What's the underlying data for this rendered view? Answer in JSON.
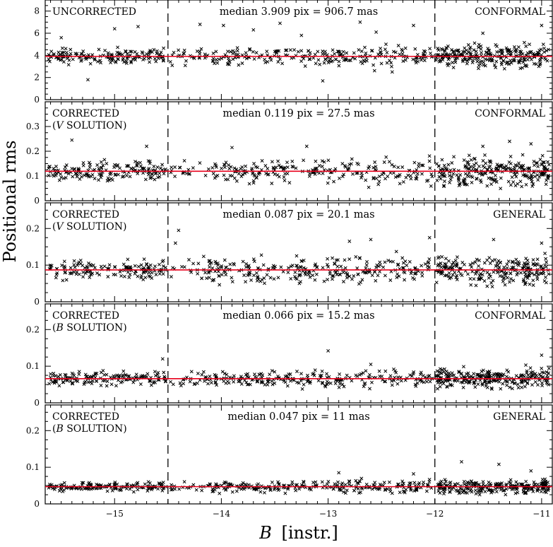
{
  "ylabel": "Positional rms",
  "xlabel_italic": "B",
  "xlabel_rest": "[instr.]",
  "x_ticks": [
    "-15",
    "-14",
    "-13",
    "-12",
    "-11"
  ],
  "colors": {
    "median_line": "#e8001c",
    "points": "#000000",
    "dashed": "#000000"
  },
  "chart_data": [
    {
      "type": "scatter",
      "xlim": [
        -15.65,
        -10.9
      ],
      "ylim": [
        0,
        9
      ],
      "y_ticks": [
        "0",
        "2",
        "4",
        "6",
        "8"
      ],
      "y_tick_values": [
        0,
        2,
        4,
        6,
        8
      ],
      "vlines": [
        -14.5,
        -12.0
      ],
      "median": 3.909,
      "left_label": [
        "UNCORRECTED"
      ],
      "median_text": "median 3.909 pix = 906.7 mas",
      "right_label": "CONFORMAL",
      "spread": 0.55,
      "outliers": [
        [
          -15.5,
          5.6
        ],
        [
          -15.0,
          6.4
        ],
        [
          -14.78,
          6.6
        ],
        [
          -14.2,
          6.8
        ],
        [
          -13.98,
          6.7
        ],
        [
          -13.7,
          6.3
        ],
        [
          -13.45,
          6.9
        ],
        [
          -13.25,
          5.8
        ],
        [
          -12.7,
          7.0
        ],
        [
          -12.55,
          6.1
        ],
        [
          -12.2,
          6.7
        ],
        [
          -11.55,
          6.0
        ],
        [
          -11.0,
          6.7
        ],
        [
          -13.05,
          1.7
        ],
        [
          -15.25,
          1.8
        ],
        [
          -12.4,
          2.5
        ]
      ]
    },
    {
      "type": "scatter",
      "xlim": [
        -15.65,
        -10.9
      ],
      "ylim": [
        0,
        0.4
      ],
      "y_ticks": [
        "0",
        "0.1",
        "0.2",
        "0.3"
      ],
      "y_tick_values": [
        0,
        0.1,
        0.2,
        0.3
      ],
      "vlines": [
        -14.5,
        -12.0
      ],
      "median": 0.119,
      "left_label": [
        "CORRECTED",
        "(V SOLUTION)"
      ],
      "median_text": "median 0.119 pix = 27.5 mas",
      "right_label": "CONFORMAL",
      "spread": 0.032,
      "outliers": [
        [
          -15.4,
          0.245
        ],
        [
          -14.7,
          0.22
        ],
        [
          -13.9,
          0.215
        ],
        [
          -13.2,
          0.22
        ],
        [
          -11.3,
          0.24
        ],
        [
          -11.1,
          0.23
        ],
        [
          -11.55,
          0.22
        ]
      ]
    },
    {
      "type": "scatter",
      "xlim": [
        -15.65,
        -10.9
      ],
      "ylim": [
        0,
        0.27
      ],
      "y_ticks": [
        "0",
        "0.1",
        "0.2"
      ],
      "y_tick_values": [
        0,
        0.1,
        0.2
      ],
      "vlines": [
        -14.5,
        -12.0
      ],
      "median": 0.087,
      "left_label": [
        "CORRECTED",
        "(V SOLUTION)"
      ],
      "median_text": "median 0.087 pix = 20.1 mas",
      "right_label": "GENERAL",
      "spread": 0.022,
      "outliers": [
        [
          -14.4,
          0.195
        ],
        [
          -14.43,
          0.16
        ],
        [
          -12.8,
          0.165
        ],
        [
          -12.6,
          0.17
        ],
        [
          -12.05,
          0.175
        ],
        [
          -11.45,
          0.17
        ],
        [
          -11.0,
          0.16
        ]
      ]
    },
    {
      "type": "scatter",
      "xlim": [
        -15.65,
        -10.9
      ],
      "ylim": [
        0,
        0.27
      ],
      "y_ticks": [
        "0",
        "0.1",
        "0.2"
      ],
      "y_tick_values": [
        0,
        0.1,
        0.2
      ],
      "vlines": [
        -14.5,
        -12.0
      ],
      "median": 0.066,
      "left_label": [
        "CORRECTED",
        "(B SOLUTION)"
      ],
      "median_text": "median 0.066 pix = 15.2 mas",
      "right_label": "CONFORMAL",
      "spread": 0.014,
      "outliers": [
        [
          -13.0,
          0.142
        ],
        [
          -11.0,
          0.13
        ],
        [
          -14.55,
          0.12
        ],
        [
          -12.6,
          0.105
        ]
      ]
    },
    {
      "type": "scatter",
      "xlim": [
        -15.65,
        -10.9
      ],
      "ylim": [
        0,
        0.27
      ],
      "y_ticks": [
        "0",
        "0.1",
        "0.2"
      ],
      "y_tick_values": [
        0,
        0.1,
        0.2
      ],
      "vlines": [
        -14.5,
        -12.0
      ],
      "median": 0.047,
      "left_label": [
        "CORRECTED",
        "(B SOLUTION)"
      ],
      "median_text": "median 0.047 pix = 11 mas",
      "right_label": "GENERAL",
      "spread": 0.01,
      "outliers": [
        [
          -11.75,
          0.115
        ],
        [
          -11.4,
          0.108
        ],
        [
          -12.9,
          0.085
        ],
        [
          -11.1,
          0.09
        ],
        [
          -12.2,
          0.082
        ]
      ]
    }
  ]
}
